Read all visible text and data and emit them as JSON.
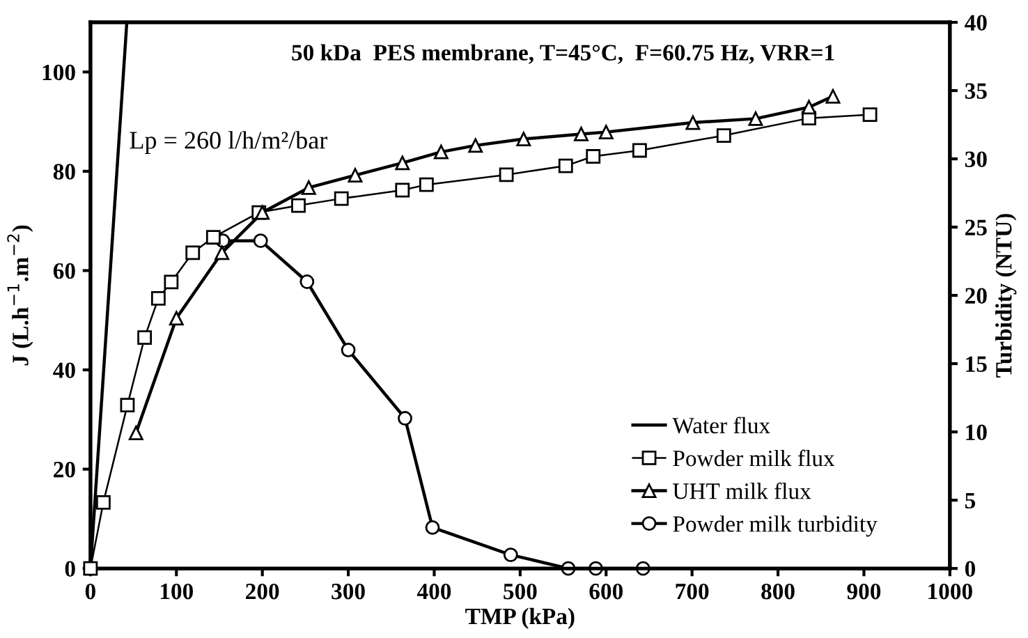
{
  "chart_data": {
    "type": "line",
    "title": "50 kDa  PES membrane, T=45°C,  F=60.75 Hz, VRR=1",
    "xlabel": "TMP (kPa)",
    "ylabel": "J (L.h$^{−1}$.m$^{−2}$)",
    "y2label": "Turbidity (NTU)",
    "annotations": [
      "Lp = 260 l/h/m²/bar"
    ],
    "xlim": [
      0,
      1000
    ],
    "xticks": [
      0,
      100,
      200,
      300,
      400,
      500,
      600,
      700,
      800,
      900,
      1000
    ],
    "ylim": [
      0,
      110
    ],
    "yticks": [
      0,
      20,
      40,
      60,
      80,
      100
    ],
    "y2lim": [
      0,
      40
    ],
    "y2ticks": [
      0,
      5,
      10,
      15,
      20,
      25,
      30,
      35,
      40
    ],
    "grid": false,
    "legend": "bottom right",
    "line_style": "solid",
    "series": [
      {
        "name": "Water flux",
        "color": "#000000",
        "x": [
          0,
          42.3
        ],
        "values": [
          0,
          110
        ]
      },
      {
        "name": "Powder milk flux",
        "color": "#000000",
        "marker": "square",
        "x": [
          0,
          15,
          43,
          63,
          79,
          94,
          119,
          143,
          196,
          242,
          292,
          363,
          391,
          484,
          553,
          585,
          639,
          737,
          836,
          907
        ],
        "values": [
          0,
          13.3,
          32.9,
          46.5,
          54.4,
          57.7,
          63.6,
          66.7,
          71.7,
          73.1,
          74.5,
          76.2,
          77.3,
          79.3,
          81.1,
          83.0,
          84.2,
          87.2,
          90.7,
          91.4
        ]
      },
      {
        "name": "UHT milk flux",
        "color": "#000000",
        "marker": "triangle",
        "x": [
          53,
          100,
          153,
          200,
          254,
          308,
          363,
          408,
          448,
          504,
          571,
          600,
          701,
          774,
          836,
          864
        ],
        "values": [
          27.3,
          50.4,
          63.6,
          71.7,
          76.7,
          79.2,
          81.7,
          83.9,
          85.2,
          86.5,
          87.5,
          87.9,
          89.8,
          90.6,
          92.9,
          95.1
        ]
      },
      {
        "name": "Powder milk turbidity",
        "color": "#000000",
        "marker": "circle",
        "axis": "y2",
        "x": [
          154,
          198,
          252,
          300,
          366,
          398,
          489,
          556,
          588,
          643
        ],
        "values": [
          24.0,
          24.0,
          21.0,
          16.0,
          11.0,
          3.0,
          1.0,
          0,
          0,
          0
        ]
      }
    ]
  }
}
